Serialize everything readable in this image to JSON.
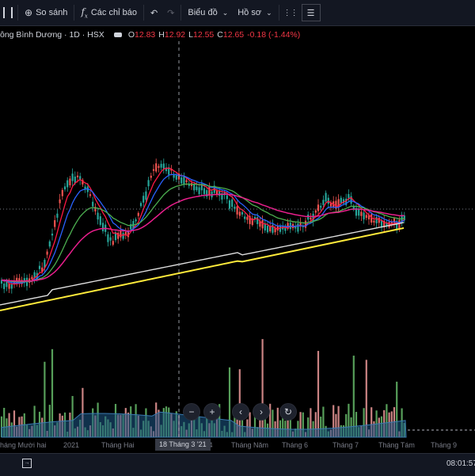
{
  "toolbar": {
    "compare_label": "So sánh",
    "indicators_label": "Các chỉ báo",
    "chart_label": "Biểu đồ",
    "profile_label": "Hồ sơ"
  },
  "legend": {
    "symbol_title": "ông Bình Dương · 1D · HSX",
    "open_label": "O",
    "open": "12.83",
    "high_label": "H",
    "high": "12.92",
    "low_label": "L",
    "low": "12.55",
    "close_label": "C",
    "close": "12.65",
    "change": "-0.18 (-1.44%)"
  },
  "time_axis": {
    "labels": [
      "háng Mười hai",
      "2021",
      "Tháng Hai",
      "g 4",
      "Tháng Năm",
      "Tháng 6",
      "Tháng 7",
      "Tháng Tám",
      "Tháng 9"
    ],
    "crosshair_label": "18 Tháng 3 '21"
  },
  "status": {
    "clock": "08:01:57"
  },
  "colors": {
    "bull": "#26a69a",
    "bear": "#ef5350",
    "ma_red": "#ff1744",
    "ma_blue": "#2962ff",
    "ma_green": "#4caf50",
    "ma_magenta": "#e91e8c",
    "ma_white": "#e0e0e0",
    "ma_yellow": "#ffeb3b",
    "volume_ma": "#1e5a8a"
  },
  "icons": {
    "zoom_out": "minus-icon",
    "zoom_in": "plus-icon",
    "scroll_left": "chevron-left-icon",
    "scroll_right": "chevron-right-icon",
    "reset": "reset-icon"
  }
}
